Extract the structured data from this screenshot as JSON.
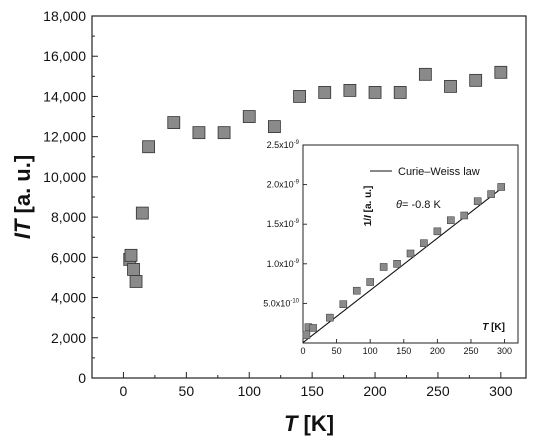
{
  "chart_data": [
    {
      "type": "scatter",
      "title": "",
      "xlabel": {
        "italic": "T",
        "rest": " [K]"
      },
      "ylabel": {
        "italic": "IT",
        "rest": " [a. u.]"
      },
      "xlim": [
        -25,
        320
      ],
      "ylim": [
        0,
        18000
      ],
      "x_ticks": [
        0,
        50,
        100,
        150,
        200,
        250,
        300
      ],
      "x_tick_labels": [
        "0",
        "50",
        "100",
        "150",
        "200",
        "250",
        "300"
      ],
      "y_ticks": [
        0,
        2000,
        4000,
        6000,
        8000,
        10000,
        12000,
        14000,
        16000,
        18000
      ],
      "y_tick_labels": [
        "0",
        "2,000",
        "4,000",
        "6,000",
        "8,000",
        "10,000",
        "12,000",
        "14,000",
        "16,000",
        "18,000"
      ],
      "marker": "square",
      "marker_color": "#8a8a8a",
      "series": [
        {
          "x": [
            5,
            6,
            8,
            10,
            15,
            20,
            40,
            60,
            80,
            100,
            120,
            140,
            160,
            180,
            200,
            220,
            240,
            260,
            280,
            300
          ],
          "y": [
            5900,
            6100,
            5400,
            4800,
            8200,
            11500,
            12700,
            12200,
            12200,
            13000,
            12500,
            14000,
            14200,
            14300,
            14200,
            14200,
            15100,
            14500,
            14800,
            15200
          ]
        }
      ]
    },
    {
      "type": "scatter",
      "title": "",
      "xlabel": {
        "italic": "T",
        "rest": " [K]"
      },
      "ylabel": {
        "main": "1/",
        "italic": "I",
        "rest": " [a. u.]"
      },
      "xlim": [
        0,
        320
      ],
      "ylim": [
        0,
        2.5e-09
      ],
      "x_ticks": [
        0,
        50,
        100,
        150,
        200,
        250,
        300
      ],
      "x_tick_labels": [
        "0",
        "50",
        "100",
        "150",
        "200",
        "250",
        "300"
      ],
      "y_ticks": [
        5e-10,
        1e-09,
        1.5e-09,
        2e-09,
        2.5e-09
      ],
      "y_tick_labels": [
        {
          "mantissa": "5.0x10",
          "exp": "-10"
        },
        {
          "mantissa": "1.0x10",
          "exp": "-9"
        },
        {
          "mantissa": "1.5x10",
          "exp": "-9"
        },
        {
          "mantissa": "2.0x10",
          "exp": "-9"
        },
        {
          "mantissa": "2.5x10",
          "exp": "-9"
        }
      ],
      "marker": "square",
      "marker_color": "#8a8a8a",
      "legend": {
        "position": "top-right",
        "entries": [
          "Curie–Weiss law"
        ]
      },
      "annotation": {
        "symbol": "θ",
        "text": "= -0.8 K"
      },
      "fit_line": {
        "x": [
          0,
          295
        ],
        "y": [
          5e-12,
          1.95e-09
        ]
      },
      "series": [
        {
          "x": [
            5,
            8,
            15,
            40,
            60,
            80,
            100,
            120,
            140,
            160,
            180,
            200,
            220,
            240,
            260,
            280,
            295
          ],
          "y": [
            1e-10,
            2e-10,
            1.9e-10,
            3.2e-10,
            4.9e-10,
            6.6e-10,
            7.7e-10,
            9.6e-10,
            1e-09,
            1.13e-09,
            1.26e-09,
            1.41e-09,
            1.55e-09,
            1.61e-09,
            1.79e-09,
            1.88e-09,
            1.97e-09
          ]
        }
      ]
    }
  ]
}
